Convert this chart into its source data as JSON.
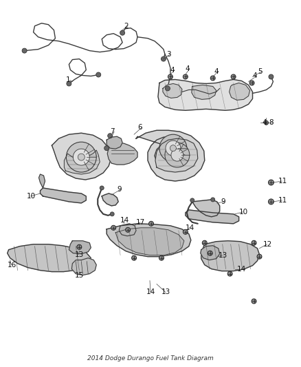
{
  "title": "2014 Dodge Durango Fuel Tank Diagram",
  "background_color": "#ffffff",
  "line_color": "#3a3a3a",
  "figsize": [
    4.38,
    5.33
  ],
  "dpi": 100,
  "label_fontsize": 7.5,
  "components": {
    "fuel_lines_top": {
      "part1_color": "#444444",
      "part2_color": "#444444"
    }
  }
}
